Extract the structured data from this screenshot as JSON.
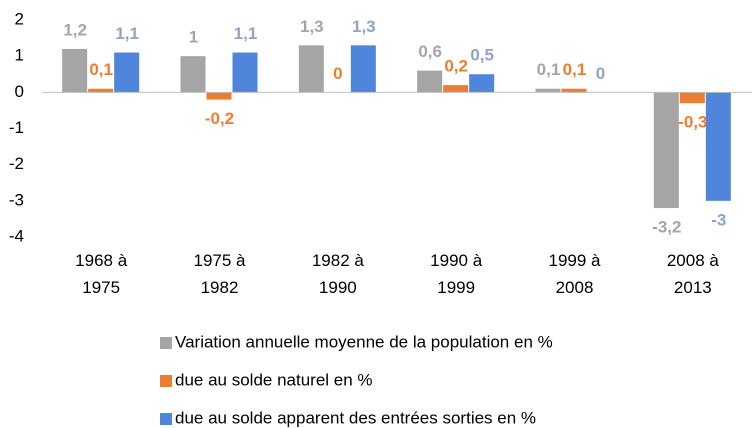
{
  "chart_data": {
    "type": "bar",
    "categories": [
      "1968 à 1975",
      "1975 à 1982",
      "1982 à 1990",
      "1990 à 1999",
      "1999 à 2008",
      "2008 à 2013"
    ],
    "series": [
      {
        "name": "Variation annuelle moyenne de la population en %",
        "color": "#a5a5a5",
        "label_color": "#a5a5a5",
        "values": [
          1.2,
          1,
          1.3,
          0.6,
          0.1,
          -3.2
        ],
        "value_labels": [
          "1,2",
          "1",
          "1,3",
          "0,6",
          "0,1",
          "-3,2"
        ]
      },
      {
        "name": "due au solde naturel en %",
        "color": "#ed7d31",
        "label_color": "#ed7d31",
        "values": [
          0.1,
          -0.2,
          0,
          0.2,
          0.1,
          -0.3
        ],
        "value_labels": [
          "0,1",
          "-0,2",
          "0",
          "0,2",
          "0,1",
          "-0,3"
        ]
      },
      {
        "name": "due au solde apparent des entrées sorties en %",
        "color": "#4f86dc",
        "label_color": "#8ea4c8",
        "values": [
          1.1,
          1.1,
          1.3,
          0.5,
          0,
          -3
        ],
        "value_labels": [
          "1,1",
          "1,1",
          "1,3",
          "0,5",
          "0",
          "-3"
        ]
      }
    ],
    "ylim": [
      -4,
      2
    ],
    "yticks": [
      -4,
      -3,
      -2,
      -1,
      0,
      1,
      2
    ],
    "grid": false,
    "legend": "bottom"
  }
}
